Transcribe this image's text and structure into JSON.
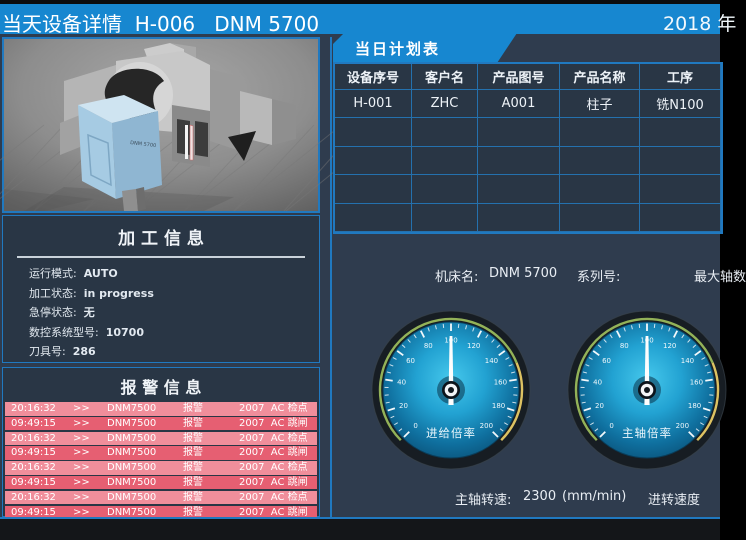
{
  "header": {
    "title": "当天设备详情  H-006   DNM 5700",
    "year": "2018 年"
  },
  "machine_view": {
    "label": "DNM 5700"
  },
  "process_info": {
    "title": "加 工 信 息",
    "rows": [
      {
        "label": "运行模式:",
        "value": "AUTO"
      },
      {
        "label": "加工状态:",
        "value": "in progress"
      },
      {
        "label": "急停状态:",
        "value": "无"
      },
      {
        "label": "数控系统型号:",
        "value": "10700"
      },
      {
        "label": "刀具号:",
        "value": "286"
      }
    ]
  },
  "alarm_info": {
    "title": "报 警 信 息",
    "rows": [
      {
        "time": "20:16:32",
        "arrow": ">>",
        "device": "DNM7500",
        "type": "报警",
        "code": "2007",
        "message": "AC 检点"
      },
      {
        "time": "09:49:15",
        "arrow": ">>",
        "device": "DNM7500",
        "type": "报警",
        "code": "2007",
        "message": "AC 跳闸"
      },
      {
        "time": "20:16:32",
        "arrow": ">>",
        "device": "DNM7500",
        "type": "报警",
        "code": "2007",
        "message": "AC 检点"
      },
      {
        "time": "09:49:15",
        "arrow": ">>",
        "device": "DNM7500",
        "type": "报警",
        "code": "2007",
        "message": "AC 跳闸"
      },
      {
        "time": "20:16:32",
        "arrow": ">>",
        "device": "DNM7500",
        "type": "报警",
        "code": "2007",
        "message": "AC 检点"
      },
      {
        "time": "09:49:15",
        "arrow": ">>",
        "device": "DNM7500",
        "type": "报警",
        "code": "2007",
        "message": "AC 跳闸"
      },
      {
        "time": "20:16:32",
        "arrow": ">>",
        "device": "DNM7500",
        "type": "报警",
        "code": "2007",
        "message": "AC 检点"
      },
      {
        "time": "09:49:15",
        "arrow": ">>",
        "device": "DNM7500",
        "type": "报警",
        "code": "2007",
        "message": "AC 跳闸"
      }
    ]
  },
  "plan_table": {
    "tab_title": "当日计划表",
    "columns": [
      "设备序号",
      "客户名",
      "产品图号",
      "产品名称",
      "工序"
    ],
    "rows": [
      [
        "H-001",
        "ZHC",
        "A001",
        "柱子",
        "铣N100"
      ],
      [
        "",
        "",
        "",
        "",
        ""
      ],
      [
        "",
        "",
        "",
        "",
        ""
      ],
      [
        "",
        "",
        "",
        "",
        ""
      ],
      [
        "",
        "",
        "",
        "",
        ""
      ]
    ]
  },
  "machine_status": {
    "machine_name_label": "机床名:",
    "machine_name": "DNM 5700",
    "serial_label": "系列号:",
    "max_axes_label": "最大轴数",
    "spindle_label": "主轴转速:",
    "spindle_value": "2300",
    "spindle_unit": "(mm/min)",
    "feed_label": "进转速度"
  },
  "gauges": [
    {
      "label": "进给倍率",
      "min": 0,
      "max": 200,
      "value": 100,
      "major_step": 20,
      "minor_step": 5,
      "green_until": 150
    },
    {
      "label": "主轴倍率",
      "min": 0,
      "max": 200,
      "value": 100,
      "major_step": 20,
      "minor_step": 5,
      "green_until": 150
    }
  ],
  "colors": {
    "header_blue": "#1787d0",
    "bg": "#2f3c4e",
    "panel_bg": "#293645",
    "line_blue": "#2079c0",
    "grid_blue": "#2471ae",
    "alarm_light": "#f08e9b",
    "alarm_dark": "#e65f72",
    "gauge_green": "#93b258",
    "gauge_yellow": "#ddc262",
    "bottom_bar": "#141619"
  }
}
